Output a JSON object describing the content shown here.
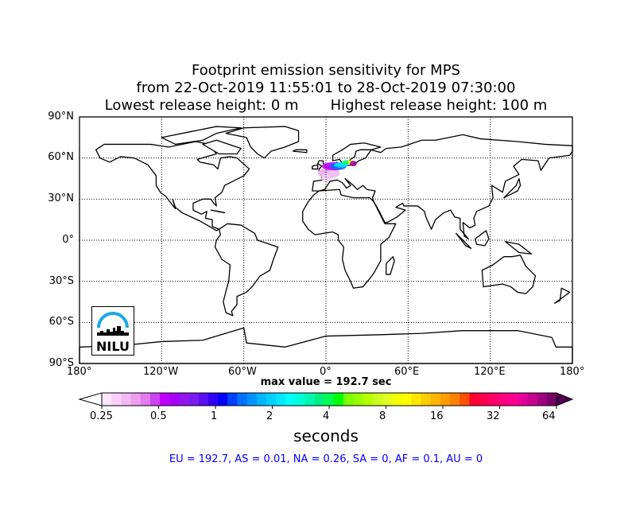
{
  "title": {
    "line1": "Footprint emission sensitivity for MPS",
    "line2": "from 22-Oct-2019 11:55:01 to 28-Oct-2019 07:30:00",
    "line3": "Lowest release height: 0 m       Highest release height: 100 m"
  },
  "map": {
    "projection": "equirectangular",
    "lat_ticks": [
      "90°N",
      "60°N",
      "30°N",
      "0°",
      "30°S",
      "60°S",
      "90°S"
    ],
    "lon_ticks": [
      "180°",
      "120°W",
      "60°W",
      "0°",
      "60°E",
      "120°E",
      "180°"
    ],
    "gridlines": "dotted",
    "logo_text": "NILU"
  },
  "max_value_label": "max value = 192.7 sec",
  "colorbar": {
    "ticks": [
      "0.25",
      "0.5",
      "1",
      "2",
      "4",
      "8",
      "16",
      "32",
      "64"
    ],
    "units": "seconds",
    "extend": "both",
    "colors": [
      "#ffffff",
      "#ffe6fc",
      "#f8d0f8",
      "#f4b8f4",
      "#eda0f0",
      "#e37cf0",
      "#cc44f0",
      "#c000ff",
      "#a800f8",
      "#9414f0",
      "#7a1cf0",
      "#5a10f4",
      "#3400f4",
      "#0000ff",
      "#0040ff",
      "#0070ff",
      "#0094ff",
      "#00b4ff",
      "#00d0ff",
      "#00e8ff",
      "#00fff8",
      "#00ffd8",
      "#00f8b0",
      "#00f080",
      "#00ff50",
      "#00ff00",
      "#7cff00",
      "#98ff00",
      "#b4ff00",
      "#ccff20",
      "#e0ff20",
      "#f4ff00",
      "#ffff00",
      "#ffe600",
      "#ffcc00",
      "#ffb400",
      "#ff9c00",
      "#ff8000",
      "#ff5000",
      "#ff0030",
      "#ff0050",
      "#ff0068",
      "#ff0080",
      "#ff0090",
      "#e8009c",
      "#c80090",
      "#a00080",
      "#780068",
      "#500050"
    ]
  },
  "summary": "EU = 192.7,  AS = 0.01,  NA = 0.26,  SA = 0,  AF = 0.1,  AU = 0"
}
